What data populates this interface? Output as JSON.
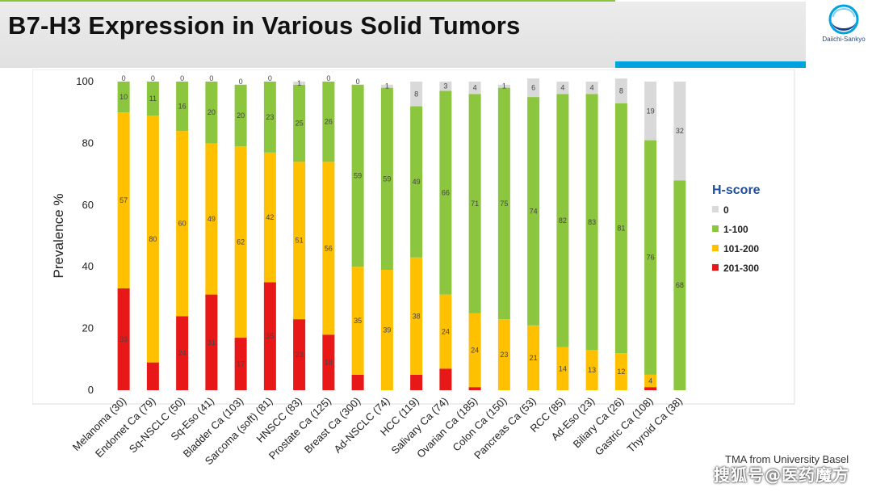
{
  "title": "B7-H3 Expression in Various Solid Tumors",
  "logo": {
    "text": "Daiichi-Sankyo"
  },
  "footnote": "TMA from University Basel",
  "watermark": "搜狐号@医药魔方",
  "colors": {
    "0": "#d9d9d9",
    "1-100": "#8cc63f",
    "101-200": "#ffc000",
    "201-300": "#e81818"
  },
  "chart_data": {
    "type": "bar",
    "stacked": true,
    "ylabel": "Prevalence %",
    "ylim": [
      0,
      100
    ],
    "yticks": [
      0,
      20,
      40,
      60,
      80,
      100
    ],
    "grid": false,
    "legend": {
      "title": "H-score",
      "position": "right",
      "entries": [
        "0",
        "1-100",
        "101-200",
        "201-300"
      ]
    },
    "categories": [
      "Melanoma (30)",
      "Endomet Ca (79)",
      "Sq-NSCLC (50)",
      "Sq-Eso (41)",
      "Bladder Ca (103)",
      "Sarcoma (soft) (81)",
      "HNSCC (83)",
      "Prostate Ca (125)",
      "Breast Ca (300)",
      "Ad-NSCLC (74)",
      "HCC (119)",
      "Salivary Ca (74)",
      "Ovarian Ca (185)",
      "Colon Ca (150)",
      "Pancreas Ca (53)",
      "RCC (85)",
      "Ad-Eso (23)",
      "Biliary Ca (26)",
      "Gastric Ca (108)",
      "Thyroid Ca (38)"
    ],
    "series": [
      {
        "name": "201-300",
        "values": [
          33,
          9,
          24,
          31,
          17,
          35,
          23,
          18,
          5,
          0,
          5,
          7,
          1,
          0,
          0,
          0,
          0,
          0,
          1,
          0
        ],
        "labels": [
          "33",
          "",
          "24",
          "31",
          "17",
          "35",
          "23",
          "18",
          "",
          "0",
          "",
          "",
          "",
          "",
          "",
          "0",
          "0",
          "0",
          "",
          "0"
        ]
      },
      {
        "name": "101-200",
        "values": [
          57,
          80,
          60,
          49,
          62,
          42,
          51,
          56,
          35,
          39,
          38,
          24,
          24,
          23,
          21,
          14,
          13,
          12,
          4,
          0
        ],
        "labels": [
          "57",
          "80",
          "60",
          "49",
          "62",
          "42",
          "51",
          "56",
          "35",
          "39",
          "38",
          "24",
          "24",
          "23",
          "21",
          "14",
          "13",
          "12",
          "4",
          ""
        ]
      },
      {
        "name": "1-100",
        "values": [
          10,
          11,
          16,
          20,
          20,
          23,
          25,
          26,
          59,
          59,
          49,
          66,
          71,
          75,
          74,
          82,
          83,
          81,
          76,
          68
        ],
        "labels": [
          "10",
          "11",
          "16",
          "20",
          "20",
          "23",
          "25",
          "26",
          "59",
          "59",
          "49",
          "66",
          "71",
          "75",
          "74",
          "82",
          "83",
          "81",
          "76",
          "68"
        ]
      },
      {
        "name": "0",
        "values": [
          0,
          0,
          0,
          0,
          0,
          0,
          1,
          0,
          0,
          1,
          8,
          3,
          4,
          1,
          6,
          4,
          4,
          8,
          19,
          32
        ],
        "labels": [
          "0",
          "0",
          "0",
          "0",
          "0",
          "0",
          "1",
          "0",
          "0",
          "1",
          "8",
          "3",
          "4",
          "1",
          "6",
          "4",
          "4",
          "8",
          "19",
          "32"
        ]
      }
    ]
  }
}
